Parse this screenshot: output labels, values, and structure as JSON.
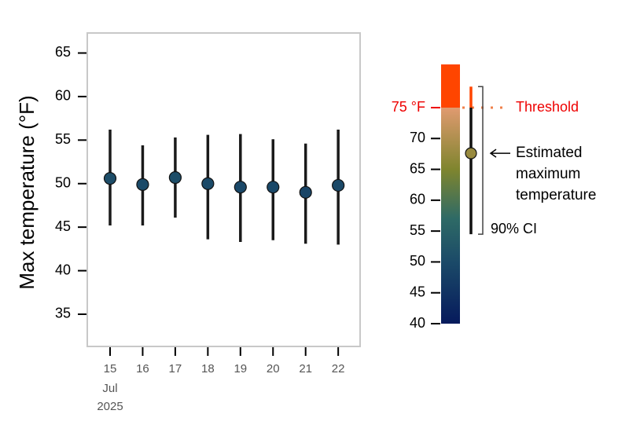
{
  "chart_data": {
    "type": "errorbar",
    "ylabel": "Max temperature (°F)",
    "categories": [
      "15",
      "16",
      "17",
      "18",
      "19",
      "20",
      "21",
      "22"
    ],
    "x_sublabels": [
      "Jul",
      "2025"
    ],
    "values": [
      50.6,
      49.9,
      50.7,
      50.0,
      49.6,
      49.6,
      49.0,
      49.8
    ],
    "lower": [
      45.2,
      45.2,
      46.1,
      43.6,
      43.3,
      43.5,
      43.1,
      43.0
    ],
    "upper": [
      56.2,
      54.4,
      55.3,
      55.6,
      55.7,
      55.1,
      54.6,
      56.2
    ],
    "ylim": [
      31.3,
      67.3
    ],
    "yticks": [
      35,
      40,
      45,
      50,
      55,
      60,
      65
    ],
    "colormap": [
      {
        "value": 40,
        "color": "#061a5c"
      },
      {
        "value": 50,
        "color": "#1b4a68"
      },
      {
        "value": 57,
        "color": "#2e6a66"
      },
      {
        "value": 65,
        "color": "#7f852e"
      },
      {
        "value": 75,
        "color": "#e09a70"
      }
    ],
    "above_color": "#ff4500",
    "legend": {
      "ylim": [
        40,
        82
      ],
      "yticks": [
        40,
        45,
        50,
        55,
        60,
        65,
        70,
        {
          "value": 75,
          "label": "75 °F"
        }
      ],
      "threshold": 75,
      "threshold_label": "Threshold",
      "threshold_color": "#f0804a",
      "example": {
        "value": 67.6,
        "lower": 54.5,
        "upper": 78.4
      },
      "point_label": [
        "Estimated",
        "maximum",
        "temperature"
      ],
      "ci_label": "90% CI"
    }
  }
}
